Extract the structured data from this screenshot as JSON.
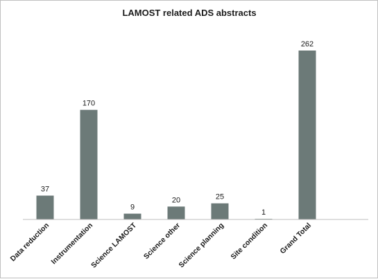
{
  "chart_data": {
    "type": "bar",
    "title": "LAMOST related ADS abstracts",
    "categories": [
      "Data reduction",
      "Instrumentation",
      "Science LAMOST",
      "Science other",
      "Science planning",
      "Site condition",
      "Grand Total"
    ],
    "values": [
      37,
      170,
      9,
      20,
      25,
      1,
      262
    ],
    "data_labels": [
      "37",
      "170",
      "9",
      "20",
      "25",
      "1",
      "262"
    ],
    "ylim": [
      0,
      262
    ],
    "grid": false,
    "legend": "none",
    "bar_color": "#6c7a78",
    "axis_color": "#bfbfbf"
  }
}
